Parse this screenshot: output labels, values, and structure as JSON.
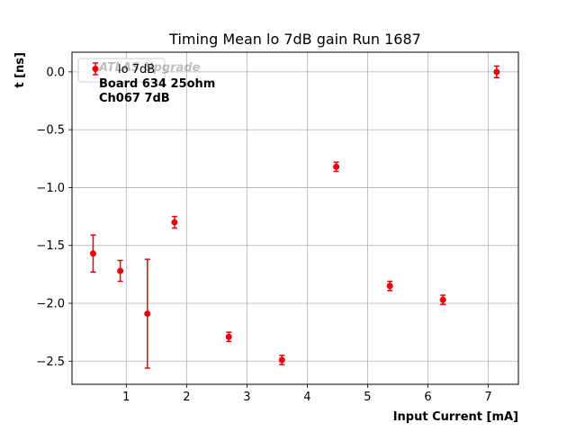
{
  "chart_data": {
    "type": "scatter",
    "title": "Timing Mean lo 7dB gain Run 1687",
    "xlabel": "Input Current [mA]",
    "ylabel": "t [ns]",
    "xlim": [
      0.1,
      7.5
    ],
    "ylim": [
      -2.7,
      0.17
    ],
    "xticks": [
      1,
      2,
      3,
      4,
      5,
      6,
      7
    ],
    "yticks": [
      0.0,
      -0.5,
      -1.0,
      -1.5,
      -2.0,
      -2.5
    ],
    "xtick_labels": [
      "1",
      "2",
      "3",
      "4",
      "5",
      "6",
      "7"
    ],
    "ytick_labels": [
      "0.0",
      "−0.5",
      "−1.0",
      "−1.5",
      "−2.0",
      "−2.5"
    ],
    "grid": true,
    "legend_position": "top-left",
    "annotation_lines": [
      "ATLAS Upgrade",
      "Board 634 25ohm",
      "Ch067 7dB"
    ],
    "series": [
      {
        "name": "lo 7dB",
        "color": "#e8000b",
        "points": [
          {
            "x": 0.45,
            "y": -1.57,
            "err": 0.16
          },
          {
            "x": 0.9,
            "y": -1.72,
            "err": 0.09
          },
          {
            "x": 1.35,
            "y": -2.09,
            "err": 0.47
          },
          {
            "x": 1.8,
            "y": -1.3,
            "err": 0.05
          },
          {
            "x": 2.7,
            "y": -2.29,
            "err": 0.04
          },
          {
            "x": 3.58,
            "y": -2.49,
            "err": 0.04
          },
          {
            "x": 4.48,
            "y": -0.82,
            "err": 0.04
          },
          {
            "x": 5.37,
            "y": -1.85,
            "err": 0.04
          },
          {
            "x": 6.25,
            "y": -1.97,
            "err": 0.04
          },
          {
            "x": 7.14,
            "y": 0.0,
            "err": 0.05
          }
        ]
      }
    ]
  }
}
